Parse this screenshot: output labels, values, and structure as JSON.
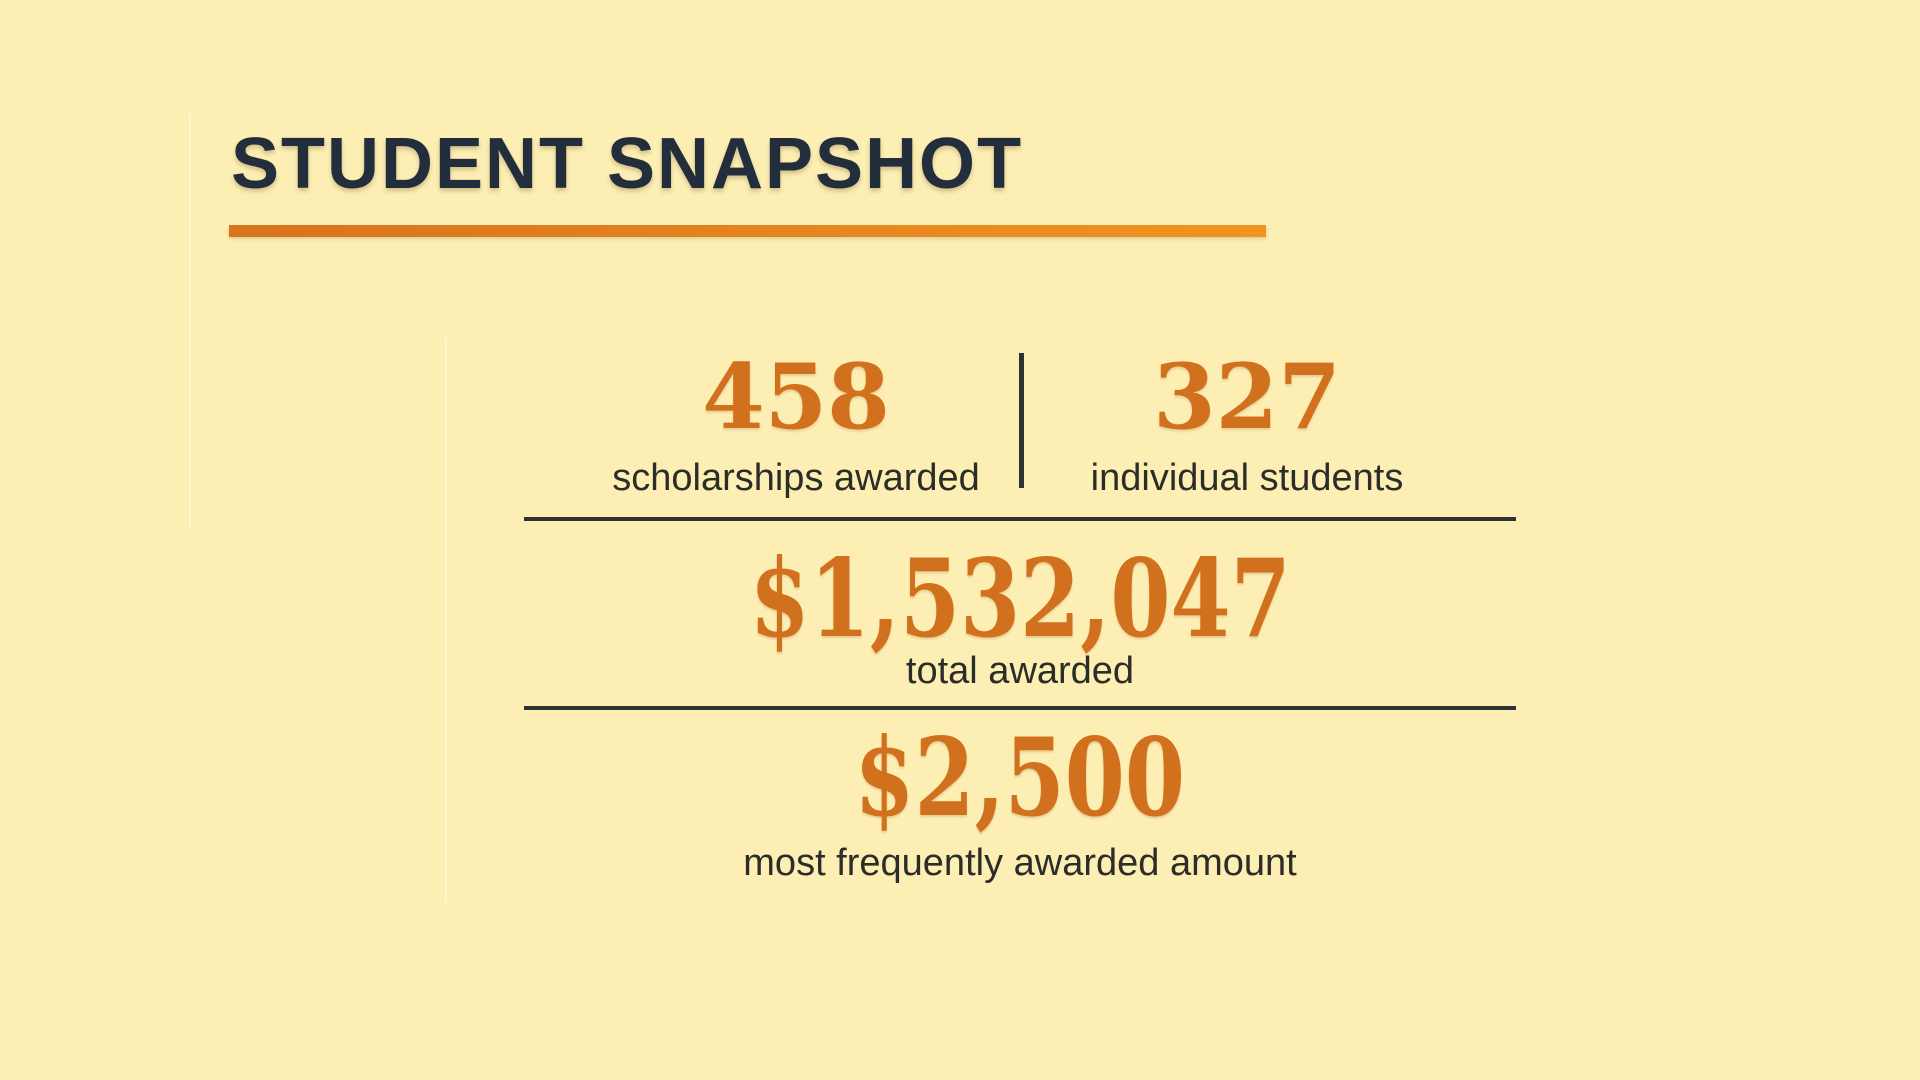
{
  "page": {
    "title": "STUDENT SNAPSHOT"
  },
  "colors": {
    "background": "#fdeeb4",
    "title_text": "#222e3c",
    "accent_orange": "#d2711d",
    "rule_gradient_start": "#d8731e",
    "rule_gradient_end": "#f29320",
    "label_text": "#2b2d28",
    "divider": "#2a3331"
  },
  "stats": {
    "row1": [
      {
        "value": "458",
        "label": "scholarships awarded"
      },
      {
        "value": "327",
        "label": "individual students"
      }
    ],
    "total": {
      "value": "$1,532,047",
      "label": "total awarded"
    },
    "frequent": {
      "value": "$2,500",
      "label": "most frequently awarded amount"
    }
  }
}
